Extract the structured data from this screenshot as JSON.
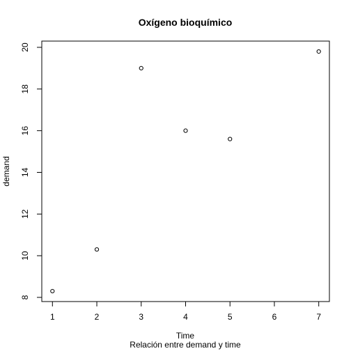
{
  "chart_data": {
    "type": "scatter",
    "title": "Oxígeno bioquímico",
    "xlabel": "Time",
    "ylabel": "demand",
    "subtitle": "Relación entre demand y time",
    "x": [
      1,
      2,
      3,
      4,
      5,
      7
    ],
    "y": [
      8.3,
      10.3,
      19.0,
      16.0,
      15.6,
      19.8
    ],
    "xlim": [
      0.76,
      7.24
    ],
    "ylim": [
      7.8,
      20.3
    ],
    "xticks": [
      1,
      2,
      3,
      4,
      5,
      6,
      7
    ],
    "yticks": [
      8,
      10,
      12,
      14,
      16,
      18,
      20
    ],
    "marker": "open-circle",
    "grid": false,
    "legend": "none"
  }
}
